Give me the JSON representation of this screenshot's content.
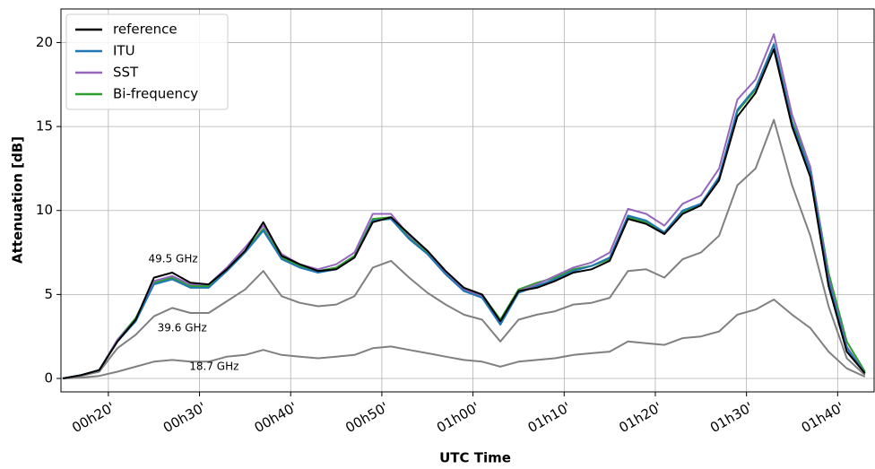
{
  "chart_data": {
    "type": "line",
    "xlabel": "UTC Time",
    "ylabel": "Attenuation [dB]",
    "x": [
      15,
      17,
      19,
      21,
      23,
      25,
      27,
      29,
      31,
      33,
      35,
      37,
      39,
      41,
      43,
      45,
      47,
      49,
      51,
      53,
      55,
      57,
      59,
      61,
      63,
      65,
      67,
      69,
      71,
      73,
      75,
      77,
      79,
      81,
      83,
      85,
      87,
      89,
      91,
      93,
      95,
      97,
      99,
      101,
      103
    ],
    "series": [
      {
        "name": "reference",
        "color": "#000000",
        "values": [
          0,
          0.2,
          0.5,
          2.2,
          3.5,
          6.0,
          6.3,
          5.7,
          5.6,
          6.5,
          7.6,
          9.3,
          7.3,
          6.8,
          6.4,
          6.5,
          7.2,
          9.3,
          9.6,
          8.6,
          7.6,
          6.4,
          5.4,
          5.0,
          3.4,
          5.2,
          5.4,
          5.8,
          6.3,
          6.5,
          7.0,
          9.5,
          9.2,
          8.6,
          9.8,
          10.3,
          11.8,
          15.6,
          17.0,
          19.6,
          15.0,
          12.0,
          5.5,
          1.6,
          0.3
        ]
      },
      {
        "name": "ITU",
        "color": "#1f77b4",
        "values": [
          0,
          0.2,
          0.5,
          2.2,
          3.4,
          5.6,
          5.9,
          5.4,
          5.4,
          6.4,
          7.5,
          8.8,
          7.1,
          6.6,
          6.3,
          6.5,
          7.2,
          9.4,
          9.5,
          8.3,
          7.4,
          6.2,
          5.2,
          4.8,
          3.2,
          5.1,
          5.5,
          5.9,
          6.4,
          6.7,
          7.2,
          9.7,
          9.4,
          8.7,
          10.0,
          10.4,
          12.0,
          16.0,
          17.3,
          19.9,
          15.2,
          12.3,
          5.8,
          1.8,
          0.3
        ]
      },
      {
        "name": "SST",
        "color": "#9467bd",
        "values": [
          0,
          0.2,
          0.5,
          2.3,
          3.5,
          5.8,
          6.1,
          5.6,
          5.6,
          6.6,
          7.8,
          9.1,
          7.4,
          6.8,
          6.5,
          6.8,
          7.5,
          9.8,
          9.8,
          8.5,
          7.6,
          6.3,
          5.3,
          4.9,
          3.3,
          5.2,
          5.6,
          6.1,
          6.6,
          6.9,
          7.5,
          10.1,
          9.8,
          9.1,
          10.4,
          10.9,
          12.5,
          16.6,
          17.8,
          20.5,
          15.7,
          12.6,
          6.0,
          1.9,
          0.3
        ]
      },
      {
        "name": "Bi-frequency",
        "color": "#2ca02c",
        "values": [
          0,
          0.2,
          0.5,
          2.3,
          3.6,
          5.7,
          6.0,
          5.5,
          5.5,
          6.5,
          7.6,
          8.9,
          7.2,
          6.7,
          6.4,
          6.6,
          7.3,
          9.5,
          9.6,
          8.4,
          7.5,
          6.3,
          5.4,
          5.0,
          3.5,
          5.3,
          5.7,
          6.0,
          6.5,
          6.7,
          7.1,
          9.6,
          9.3,
          8.7,
          9.9,
          10.4,
          11.9,
          15.9,
          17.2,
          19.9,
          15.3,
          12.6,
          6.3,
          2.2,
          0.4
        ]
      },
      {
        "color": "#808080",
        "values": [
          0,
          0.15,
          0.4,
          1.8,
          2.6,
          3.7,
          4.2,
          3.9,
          3.9,
          4.6,
          5.3,
          6.4,
          4.9,
          4.5,
          4.3,
          4.4,
          4.9,
          6.6,
          7.0,
          6.0,
          5.1,
          4.4,
          3.8,
          3.5,
          2.2,
          3.5,
          3.8,
          4.0,
          4.4,
          4.5,
          4.8,
          6.4,
          6.5,
          6.0,
          7.1,
          7.5,
          8.5,
          11.5,
          12.5,
          15.4,
          11.5,
          8.5,
          4.3,
          1.2,
          0.2
        ]
      },
      {
        "color": "#808080",
        "values": [
          0,
          0.05,
          0.15,
          0.4,
          0.7,
          1.0,
          1.1,
          1.0,
          1.0,
          1.3,
          1.4,
          1.7,
          1.4,
          1.3,
          1.2,
          1.3,
          1.4,
          1.8,
          1.9,
          1.7,
          1.5,
          1.3,
          1.1,
          1.0,
          0.7,
          1.0,
          1.1,
          1.2,
          1.4,
          1.5,
          1.6,
          2.2,
          2.1,
          2.0,
          2.4,
          2.5,
          2.8,
          3.8,
          4.1,
          4.7,
          3.8,
          3.0,
          1.6,
          0.6,
          0.1
        ]
      }
    ],
    "annotations": [
      {
        "text": "49.5 GHz",
        "x": 27.1,
        "y": 7.1
      },
      {
        "text": "39.6 GHz",
        "x": 28.1,
        "y": 3.0
      },
      {
        "text": "18.7 GHz",
        "x": 31.6,
        "y": 0.7
      }
    ],
    "xlim": [
      14.8,
      104
    ],
    "xticks": [
      {
        "value": 20,
        "label": "00h20'"
      },
      {
        "value": 30,
        "label": "00h30'"
      },
      {
        "value": 40,
        "label": "00h40'"
      },
      {
        "value": 50,
        "label": "00h50'"
      },
      {
        "value": 60,
        "label": "01h00'"
      },
      {
        "value": 70,
        "label": "01h10'"
      },
      {
        "value": 80,
        "label": "01h20'"
      },
      {
        "value": 90,
        "label": "01h30'"
      },
      {
        "value": 100,
        "label": "01h40'"
      }
    ],
    "ylim": [
      -0.8,
      22
    ],
    "yticks": [
      0,
      5,
      10,
      15,
      20
    ],
    "grid": true,
    "legend": "upper left"
  }
}
